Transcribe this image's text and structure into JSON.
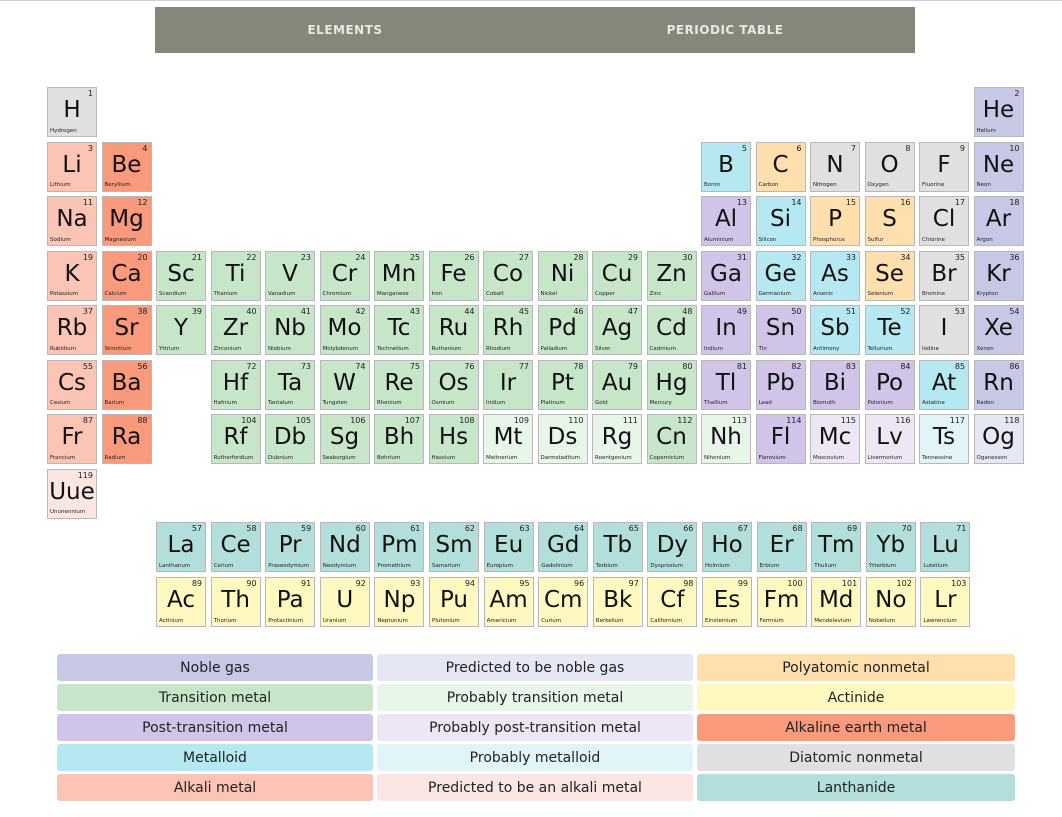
{
  "header": {
    "tabs": [
      {
        "label": "ELEMENTS"
      },
      {
        "label": "PERIODIC TABLE"
      }
    ]
  },
  "category_colors": {
    "noble": "#c6c8e5",
    "pred_noble": "#e6e7f5",
    "polyatomic": "#ffdfae",
    "transition": "#c7e6c9",
    "prob_transition": "#e8f5e9",
    "actinide": "#fff8c0",
    "post_transition": "#d0c4e8",
    "prob_post": "#ede6f5",
    "alkaline": "#f99a7d",
    "metalloid": "#b5e8f0",
    "prob_metalloid": "#e1f5f8",
    "diatomic": "#e0e0e0",
    "alkali": "#fbc4b4",
    "pred_alkali": "#fbe6e3",
    "lanthanide": "#b2dfdb"
  },
  "elements": [
    {
      "n": "1",
      "s": "H",
      "name": "Hydrogen",
      "c": "diatomic"
    },
    {
      "n": "2",
      "s": "He",
      "name": "Helium",
      "c": "noble"
    },
    {
      "n": "3",
      "s": "Li",
      "name": "Lithium",
      "c": "alkali"
    },
    {
      "n": "4",
      "s": "Be",
      "name": "Beryllium",
      "c": "alkaline"
    },
    {
      "n": "5",
      "s": "B",
      "name": "Boron",
      "c": "metalloid"
    },
    {
      "n": "6",
      "s": "C",
      "name": "Carbon",
      "c": "polyatomic"
    },
    {
      "n": "7",
      "s": "N",
      "name": "Nitrogen",
      "c": "diatomic"
    },
    {
      "n": "8",
      "s": "O",
      "name": "Oxygen",
      "c": "diatomic"
    },
    {
      "n": "9",
      "s": "F",
      "name": "Fluorine",
      "c": "diatomic"
    },
    {
      "n": "10",
      "s": "Ne",
      "name": "Neon",
      "c": "noble"
    },
    {
      "n": "11",
      "s": "Na",
      "name": "Sodium",
      "c": "alkali"
    },
    {
      "n": "12",
      "s": "Mg",
      "name": "Magnesium",
      "c": "alkaline"
    },
    {
      "n": "13",
      "s": "Al",
      "name": "Aluminium",
      "c": "post_transition"
    },
    {
      "n": "14",
      "s": "Si",
      "name": "Silicon",
      "c": "metalloid"
    },
    {
      "n": "15",
      "s": "P",
      "name": "Phosphorus",
      "c": "polyatomic"
    },
    {
      "n": "16",
      "s": "S",
      "name": "Sulfur",
      "c": "polyatomic"
    },
    {
      "n": "17",
      "s": "Cl",
      "name": "Chlorine",
      "c": "diatomic"
    },
    {
      "n": "18",
      "s": "Ar",
      "name": "Argon",
      "c": "noble"
    },
    {
      "n": "19",
      "s": "K",
      "name": "Potassium",
      "c": "alkali"
    },
    {
      "n": "20",
      "s": "Ca",
      "name": "Calcium",
      "c": "alkaline"
    },
    {
      "n": "21",
      "s": "Sc",
      "name": "Scandium",
      "c": "transition"
    },
    {
      "n": "22",
      "s": "Ti",
      "name": "Titanium",
      "c": "transition"
    },
    {
      "n": "23",
      "s": "V",
      "name": "Vanadium",
      "c": "transition"
    },
    {
      "n": "24",
      "s": "Cr",
      "name": "Chromium",
      "c": "transition"
    },
    {
      "n": "25",
      "s": "Mn",
      "name": "Manganese",
      "c": "transition"
    },
    {
      "n": "26",
      "s": "Fe",
      "name": "Iron",
      "c": "transition"
    },
    {
      "n": "27",
      "s": "Co",
      "name": "Cobalt",
      "c": "transition"
    },
    {
      "n": "28",
      "s": "Ni",
      "name": "Nickel",
      "c": "transition"
    },
    {
      "n": "29",
      "s": "Cu",
      "name": "Copper",
      "c": "transition"
    },
    {
      "n": "30",
      "s": "Zn",
      "name": "Zinc",
      "c": "transition"
    },
    {
      "n": "31",
      "s": "Ga",
      "name": "Gallium",
      "c": "post_transition"
    },
    {
      "n": "32",
      "s": "Ge",
      "name": "Germanium",
      "c": "metalloid"
    },
    {
      "n": "33",
      "s": "As",
      "name": "Arsenic",
      "c": "metalloid"
    },
    {
      "n": "34",
      "s": "Se",
      "name": "Selenium",
      "c": "polyatomic"
    },
    {
      "n": "35",
      "s": "Br",
      "name": "Bromine",
      "c": "diatomic"
    },
    {
      "n": "36",
      "s": "Kr",
      "name": "Krypton",
      "c": "noble"
    },
    {
      "n": "37",
      "s": "Rb",
      "name": "Rubidium",
      "c": "alkali"
    },
    {
      "n": "38",
      "s": "Sr",
      "name": "Strontium",
      "c": "alkaline"
    },
    {
      "n": "39",
      "s": "Y",
      "name": "Yttrium",
      "c": "transition"
    },
    {
      "n": "40",
      "s": "Zr",
      "name": "Zirconium",
      "c": "transition"
    },
    {
      "n": "41",
      "s": "Nb",
      "name": "Niobium",
      "c": "transition"
    },
    {
      "n": "42",
      "s": "Mo",
      "name": "Molybdenum",
      "c": "transition"
    },
    {
      "n": "43",
      "s": "Tc",
      "name": "Technetium",
      "c": "transition"
    },
    {
      "n": "44",
      "s": "Ru",
      "name": "Ruthenium",
      "c": "transition"
    },
    {
      "n": "45",
      "s": "Rh",
      "name": "Rhodium",
      "c": "transition"
    },
    {
      "n": "46",
      "s": "Pd",
      "name": "Palladium",
      "c": "transition"
    },
    {
      "n": "47",
      "s": "Ag",
      "name": "Silver",
      "c": "transition"
    },
    {
      "n": "48",
      "s": "Cd",
      "name": "Cadmium",
      "c": "transition"
    },
    {
      "n": "49",
      "s": "In",
      "name": "Indium",
      "c": "post_transition"
    },
    {
      "n": "50",
      "s": "Sn",
      "name": "Tin",
      "c": "post_transition"
    },
    {
      "n": "51",
      "s": "Sb",
      "name": "Antimony",
      "c": "metalloid"
    },
    {
      "n": "52",
      "s": "Te",
      "name": "Tellurium",
      "c": "metalloid"
    },
    {
      "n": "53",
      "s": "I",
      "name": "Iodine",
      "c": "diatomic"
    },
    {
      "n": "54",
      "s": "Xe",
      "name": "Xenon",
      "c": "noble"
    },
    {
      "n": "55",
      "s": "Cs",
      "name": "Cesium",
      "c": "alkali"
    },
    {
      "n": "56",
      "s": "Ba",
      "name": "Barium",
      "c": "alkaline"
    },
    {
      "n": "72",
      "s": "Hf",
      "name": "Hafnium",
      "c": "transition"
    },
    {
      "n": "73",
      "s": "Ta",
      "name": "Tantalum",
      "c": "transition"
    },
    {
      "n": "74",
      "s": "W",
      "name": "Tungsten",
      "c": "transition"
    },
    {
      "n": "75",
      "s": "Re",
      "name": "Rhenium",
      "c": "transition"
    },
    {
      "n": "76",
      "s": "Os",
      "name": "Osmium",
      "c": "transition"
    },
    {
      "n": "77",
      "s": "Ir",
      "name": "Iridium",
      "c": "transition"
    },
    {
      "n": "78",
      "s": "Pt",
      "name": "Platinum",
      "c": "transition"
    },
    {
      "n": "79",
      "s": "Au",
      "name": "Gold",
      "c": "transition"
    },
    {
      "n": "80",
      "s": "Hg",
      "name": "Mercury",
      "c": "transition"
    },
    {
      "n": "81",
      "s": "Tl",
      "name": "Thallium",
      "c": "post_transition"
    },
    {
      "n": "82",
      "s": "Pb",
      "name": "Lead",
      "c": "post_transition"
    },
    {
      "n": "83",
      "s": "Bi",
      "name": "Bismuth",
      "c": "post_transition"
    },
    {
      "n": "84",
      "s": "Po",
      "name": "Polonium",
      "c": "post_transition"
    },
    {
      "n": "85",
      "s": "At",
      "name": "Astatine",
      "c": "metalloid"
    },
    {
      "n": "86",
      "s": "Rn",
      "name": "Radon",
      "c": "noble"
    },
    {
      "n": "87",
      "s": "Fr",
      "name": "Francium",
      "c": "alkali"
    },
    {
      "n": "88",
      "s": "Ra",
      "name": "Radium",
      "c": "alkaline"
    },
    {
      "n": "104",
      "s": "Rf",
      "name": "Rutherfordium",
      "c": "transition"
    },
    {
      "n": "105",
      "s": "Db",
      "name": "Dubnium",
      "c": "transition"
    },
    {
      "n": "106",
      "s": "Sg",
      "name": "Seaborgium",
      "c": "transition"
    },
    {
      "n": "107",
      "s": "Bh",
      "name": "Bohrium",
      "c": "transition"
    },
    {
      "n": "108",
      "s": "Hs",
      "name": "Hassium",
      "c": "transition"
    },
    {
      "n": "109",
      "s": "Mt",
      "name": "Meitnerium",
      "c": "prob_transition"
    },
    {
      "n": "110",
      "s": "Ds",
      "name": "Darmstadtium",
      "c": "prob_transition"
    },
    {
      "n": "111",
      "s": "Rg",
      "name": "Roentgenium",
      "c": "prob_transition"
    },
    {
      "n": "112",
      "s": "Cn",
      "name": "Copernicium",
      "c": "transition"
    },
    {
      "n": "113",
      "s": "Nh",
      "name": "Nihonium",
      "c": "prob_transition"
    },
    {
      "n": "114",
      "s": "Fl",
      "name": "Flerovium",
      "c": "post_transition"
    },
    {
      "n": "115",
      "s": "Mc",
      "name": "Moscovium",
      "c": "prob_post"
    },
    {
      "n": "116",
      "s": "Lv",
      "name": "Livermorium",
      "c": "prob_post"
    },
    {
      "n": "117",
      "s": "Ts",
      "name": "Tennessine",
      "c": "prob_metalloid"
    },
    {
      "n": "118",
      "s": "Og",
      "name": "Oganesson",
      "c": "pred_noble"
    },
    {
      "n": "119",
      "s": "Uue",
      "name": "Ununennium",
      "c": "pred_alkali"
    },
    {
      "n": "57",
      "s": "La",
      "name": "Lanthanum",
      "c": "lanthanide"
    },
    {
      "n": "58",
      "s": "Ce",
      "name": "Cerium",
      "c": "lanthanide"
    },
    {
      "n": "59",
      "s": "Pr",
      "name": "Praseodymium",
      "c": "lanthanide"
    },
    {
      "n": "60",
      "s": "Nd",
      "name": "Neodymium",
      "c": "lanthanide"
    },
    {
      "n": "61",
      "s": "Pm",
      "name": "Promethium",
      "c": "lanthanide"
    },
    {
      "n": "62",
      "s": "Sm",
      "name": "Samarium",
      "c": "lanthanide"
    },
    {
      "n": "63",
      "s": "Eu",
      "name": "Europium",
      "c": "lanthanide"
    },
    {
      "n": "64",
      "s": "Gd",
      "name": "Gadolinium",
      "c": "lanthanide"
    },
    {
      "n": "65",
      "s": "Tb",
      "name": "Terbium",
      "c": "lanthanide"
    },
    {
      "n": "66",
      "s": "Dy",
      "name": "Dysprosium",
      "c": "lanthanide"
    },
    {
      "n": "67",
      "s": "Ho",
      "name": "Holmium",
      "c": "lanthanide"
    },
    {
      "n": "68",
      "s": "Er",
      "name": "Erbium",
      "c": "lanthanide"
    },
    {
      "n": "69",
      "s": "Tm",
      "name": "Thulium",
      "c": "lanthanide"
    },
    {
      "n": "70",
      "s": "Yb",
      "name": "Ytterbium",
      "c": "lanthanide"
    },
    {
      "n": "71",
      "s": "Lu",
      "name": "Lutetium",
      "c": "lanthanide"
    },
    {
      "n": "89",
      "s": "Ac",
      "name": "Actinium",
      "c": "actinide"
    },
    {
      "n": "90",
      "s": "Th",
      "name": "Thorium",
      "c": "actinide"
    },
    {
      "n": "91",
      "s": "Pa",
      "name": "Protactinium",
      "c": "actinide"
    },
    {
      "n": "92",
      "s": "U",
      "name": "Uranium",
      "c": "actinide"
    },
    {
      "n": "93",
      "s": "Np",
      "name": "Neptunium",
      "c": "actinide"
    },
    {
      "n": "94",
      "s": "Pu",
      "name": "Plutonium",
      "c": "actinide"
    },
    {
      "n": "95",
      "s": "Am",
      "name": "Americium",
      "c": "actinide"
    },
    {
      "n": "96",
      "s": "Cm",
      "name": "Curium",
      "c": "actinide"
    },
    {
      "n": "97",
      "s": "Bk",
      "name": "Berkelium",
      "c": "actinide"
    },
    {
      "n": "98",
      "s": "Cf",
      "name": "Californium",
      "c": "actinide"
    },
    {
      "n": "99",
      "s": "Es",
      "name": "Einsteinium",
      "c": "actinide"
    },
    {
      "n": "100",
      "s": "Fm",
      "name": "Fermium",
      "c": "actinide"
    },
    {
      "n": "101",
      "s": "Md",
      "name": "Mendelevium",
      "c": "actinide"
    },
    {
      "n": "102",
      "s": "No",
      "name": "Nobelium",
      "c": "actinide"
    },
    {
      "n": "103",
      "s": "Lr",
      "name": "Lawrencium",
      "c": "actinide"
    }
  ],
  "legend": [
    {
      "label": "Noble gas",
      "c": "noble"
    },
    {
      "label": "Predicted to be noble gas",
      "c": "pred_noble"
    },
    {
      "label": "Polyatomic nonmetal",
      "c": "polyatomic"
    },
    {
      "label": "Transition metal",
      "c": "transition"
    },
    {
      "label": "Probably transition metal",
      "c": "prob_transition"
    },
    {
      "label": "Actinide",
      "c": "actinide"
    },
    {
      "label": "Post-transition metal",
      "c": "post_transition"
    },
    {
      "label": "Probably post-transition metal",
      "c": "prob_post"
    },
    {
      "label": "Alkaline earth metal",
      "c": "alkaline"
    },
    {
      "label": "Metalloid",
      "c": "metalloid"
    },
    {
      "label": "Probably metalloid",
      "c": "prob_metalloid"
    },
    {
      "label": "Diatomic nonmetal",
      "c": "diatomic"
    },
    {
      "label": "Alkali metal",
      "c": "alkali"
    },
    {
      "label": "Predicted to be an alkali metal",
      "c": "pred_alkali"
    },
    {
      "label": "Lanthanide",
      "c": "lanthanide"
    }
  ]
}
